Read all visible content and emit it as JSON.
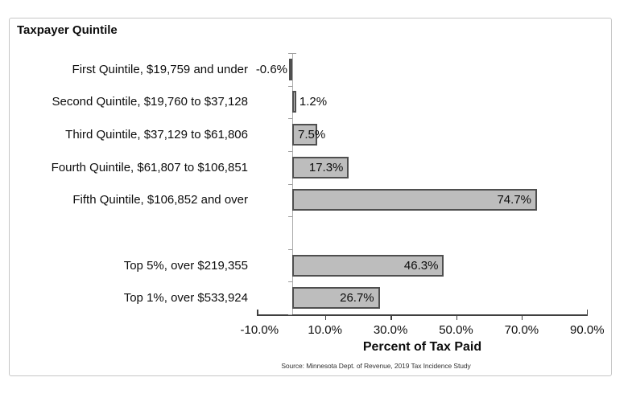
{
  "chart_data": {
    "type": "bar",
    "orientation": "horizontal",
    "title": "Taxpayer Quintile",
    "xlabel": "Percent of Tax Paid",
    "source_note": "Source:  Minnesota Dept. of Revenue, 2019 Tax Incidence Study",
    "categories": [
      "First Quintile, $19,759 and under",
      "Second Quintile, $19,760 to $37,128",
      "Third Quintile, $37,129 to $61,806",
      "Fourth Quintile, $61,807 to $106,851",
      "Fifth Quintile, $106,852 and over",
      "",
      "Top 5%, over $219,355",
      "Top 1%, over $533,924"
    ],
    "values": [
      -0.6,
      1.2,
      7.5,
      17.3,
      74.7,
      null,
      46.3,
      26.7
    ],
    "value_labels": [
      "-0.6%",
      "1.2%",
      "7.5%",
      "17.3%",
      "74.7%",
      "",
      "46.3%",
      "26.7%"
    ],
    "label_positions": [
      "outside-left",
      "outside-right",
      "inside-start",
      "inside-end",
      "inside-end",
      "none",
      "inside-end",
      "inside-end"
    ],
    "xlim": [
      -10,
      90
    ],
    "x_tick_values": [
      -10,
      10,
      30,
      50,
      70,
      90
    ],
    "x_tick_labels": [
      "-10.0%",
      "10.0%",
      "30.0%",
      "50.0%",
      "70.0%",
      "90.0%"
    ],
    "grid": "off",
    "legend": "none",
    "colors": {
      "bar_fill": "#bdbdbd",
      "bar_border": "#4f4f4f",
      "x_axis": "#3f3f3f",
      "y_axis": "#ababab",
      "text": "#0d0d0d",
      "frame_border": "#c6c6c6"
    }
  }
}
